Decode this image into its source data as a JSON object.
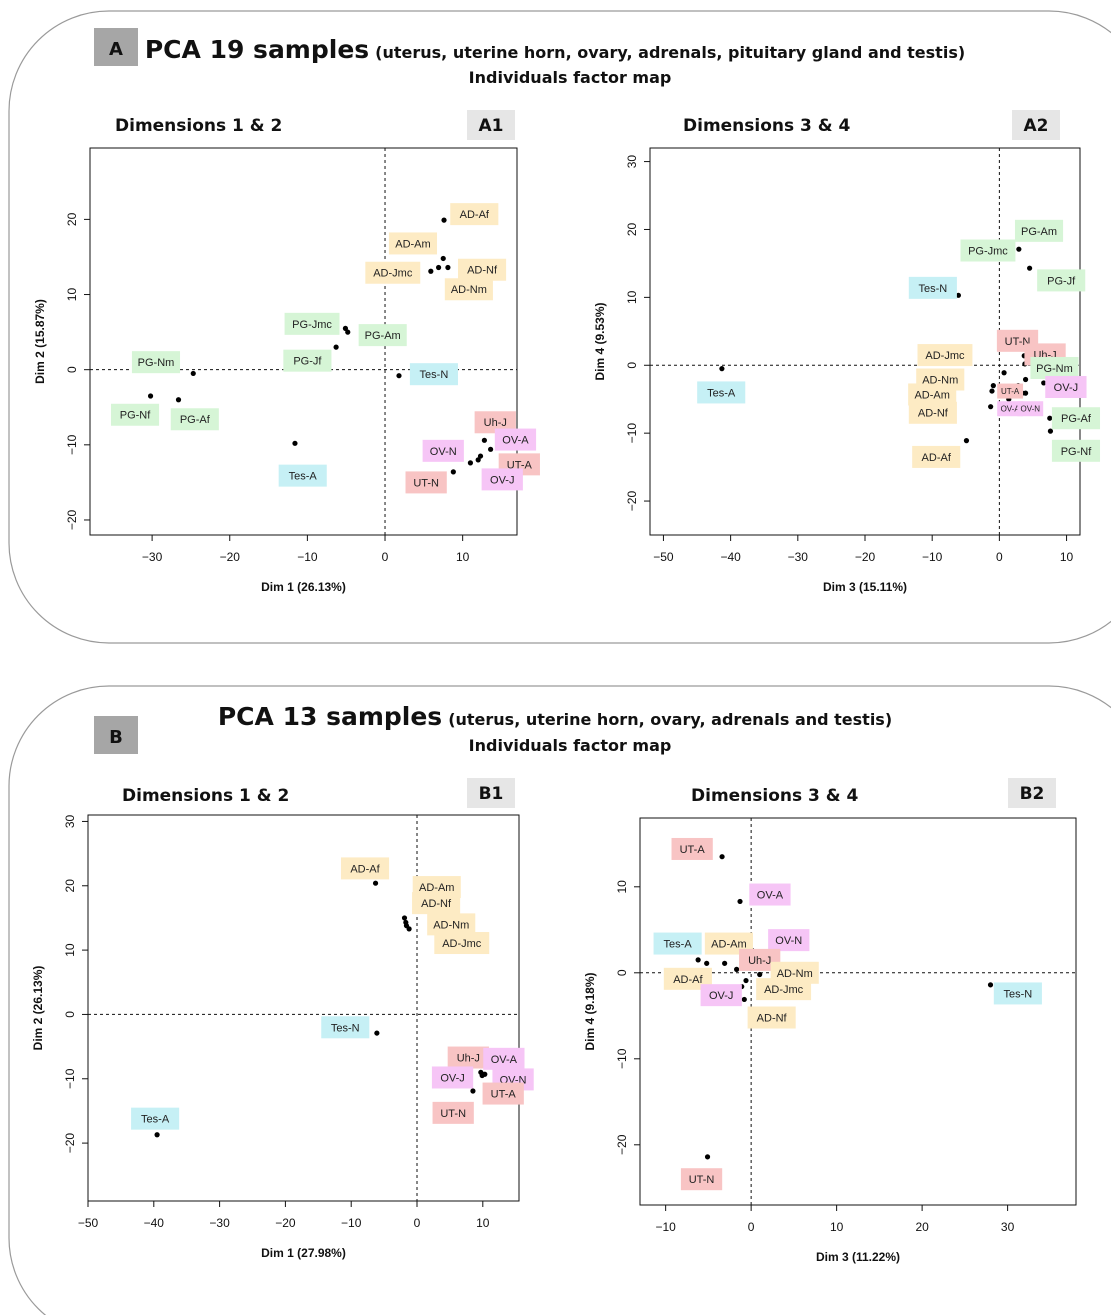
{
  "colors": {
    "AD": "#fdebc4",
    "PG": "#d6f5d6",
    "Tes": "#c6f0f5",
    "UT": "#f8c4c4",
    "OV": "#f6c5f6",
    "grey": "#a6a6a6"
  },
  "panels": [
    {
      "letter": "A",
      "title_main": "PCA 19 samples",
      "title_paren": "(uterus, uterine horn, ovary, adrenals, pituitary gland and testis)",
      "subtitle": "Individuals factor map"
    },
    {
      "letter": "B",
      "title_main": "PCA 13 samples",
      "title_paren": "(uterus, uterine horn, ovary, adrenals and testis)",
      "subtitle": "Individuals factor map"
    }
  ],
  "chart_data": [
    {
      "id": "A1",
      "type": "scatter",
      "title": "Dimensions 1 & 2",
      "tag": "A1",
      "xlabel": "Dim 1 (26.13%)",
      "ylabel": "Dim 2 (15.87%)",
      "xlim": [
        -38,
        17
      ],
      "ylim": [
        -22,
        29.5
      ],
      "xticks": [
        -30,
        -20,
        -10,
        0,
        10
      ],
      "yticks": [
        -20,
        -10,
        0,
        10,
        20
      ],
      "points": [
        {
          "x": -30.2,
          "y": -3.5
        },
        {
          "x": -24.7,
          "y": -0.5
        },
        {
          "x": -26.6,
          "y": -4.0
        },
        {
          "x": -11.6,
          "y": -9.8
        },
        {
          "x": -5.1,
          "y": 5.5
        },
        {
          "x": -4.8,
          "y": 5.0
        },
        {
          "x": -6.3,
          "y": 3.0
        },
        {
          "x": 1.8,
          "y": -0.8
        },
        {
          "x": 7.6,
          "y": 19.9
        },
        {
          "x": 7.5,
          "y": 14.8
        },
        {
          "x": 6.9,
          "y": 13.6
        },
        {
          "x": 8.1,
          "y": 13.6
        },
        {
          "x": 5.9,
          "y": 13.1
        },
        {
          "x": 12.8,
          "y": -9.4
        },
        {
          "x": 13.6,
          "y": -10.6
        },
        {
          "x": 12.3,
          "y": -11.5
        },
        {
          "x": 12.0,
          "y": -12.0
        },
        {
          "x": 11.0,
          "y": -12.4
        },
        {
          "x": 8.8,
          "y": -13.6
        }
      ],
      "labels": [
        {
          "text": "AD-Af",
          "group": "AD",
          "x": 11.5,
          "y": 20.7
        },
        {
          "text": "AD-Am",
          "group": "AD",
          "x": 3.6,
          "y": 16.8
        },
        {
          "text": "AD-Jmc",
          "group": "AD",
          "x": 1.0,
          "y": 12.9
        },
        {
          "text": "AD-Nf",
          "group": "AD",
          "x": 12.5,
          "y": 13.3
        },
        {
          "text": "AD-Nm",
          "group": "AD",
          "x": 10.8,
          "y": 10.7
        },
        {
          "text": "PG-Jmc",
          "group": "PG",
          "x": -9.4,
          "y": 6.1
        },
        {
          "text": "PG-Am",
          "group": "PG",
          "x": -0.3,
          "y": 4.6
        },
        {
          "text": "PG-Jf",
          "group": "PG",
          "x": -10.0,
          "y": 1.2
        },
        {
          "text": "PG-Nm",
          "group": "PG",
          "x": -29.5,
          "y": 1.0
        },
        {
          "text": "PG-Nf",
          "group": "PG",
          "x": -32.2,
          "y": -6.0
        },
        {
          "text": "PG-Af",
          "group": "PG",
          "x": -24.5,
          "y": -6.6
        },
        {
          "text": "Tes-N",
          "group": "Tes",
          "x": 6.3,
          "y": -0.6
        },
        {
          "text": "Tes-A",
          "group": "Tes",
          "x": -10.6,
          "y": -14.1
        },
        {
          "text": "Uh-J",
          "group": "UT",
          "x": 14.2,
          "y": -7.0
        },
        {
          "text": "OV-A",
          "group": "OV",
          "x": 16.8,
          "y": -9.3
        },
        {
          "text": "OV-N",
          "group": "OV",
          "x": 7.5,
          "y": -10.8
        },
        {
          "text": "UT-A",
          "group": "UT",
          "x": 17.3,
          "y": -12.6
        },
        {
          "text": "OV-J",
          "group": "OV",
          "x": 15.1,
          "y": -14.6
        },
        {
          "text": "UT-N",
          "group": "UT",
          "x": 5.3,
          "y": -15.0
        }
      ]
    },
    {
      "id": "A2",
      "type": "scatter",
      "title": "Dimensions 3 & 4",
      "tag": "A2",
      "xlabel": "Dim 3 (15.11%)",
      "ylabel": "Dim 4 (9.53%)",
      "xlim": [
        -52,
        12
      ],
      "ylim": [
        -25,
        32
      ],
      "xticks": [
        -50,
        -40,
        -30,
        -20,
        -10,
        0,
        10
      ],
      "yticks": [
        -20,
        -10,
        0,
        10,
        20,
        30
      ],
      "points": [
        {
          "x": -41.3,
          "y": -0.5
        },
        {
          "x": -6.1,
          "y": 10.3
        },
        {
          "x": 2.9,
          "y": 17.1
        },
        {
          "x": 4.5,
          "y": 14.3
        },
        {
          "x": 3.7,
          "y": 1.4
        },
        {
          "x": 3.8,
          "y": 0.2
        },
        {
          "x": 0.7,
          "y": -1.1
        },
        {
          "x": -0.9,
          "y": -3.0
        },
        {
          "x": -1.1,
          "y": -3.8
        },
        {
          "x": 3.9,
          "y": -2.1
        },
        {
          "x": 6.6,
          "y": -2.6
        },
        {
          "x": 2.8,
          "y": -3.0
        },
        {
          "x": 3.4,
          "y": -4.1
        },
        {
          "x": 3.9,
          "y": -4.1
        },
        {
          "x": -1.3,
          "y": -6.1
        },
        {
          "x": -4.9,
          "y": -11.1
        },
        {
          "x": 7.5,
          "y": -7.8
        },
        {
          "x": 7.6,
          "y": -9.7
        },
        {
          "x": 1.4,
          "y": -5.0
        }
      ],
      "labels": [
        {
          "text": "PG-Am",
          "group": "PG",
          "x": 5.9,
          "y": 19.8
        },
        {
          "text": "PG-Jmc",
          "group": "PG",
          "x": -1.7,
          "y": 16.9
        },
        {
          "text": "PG-Jf",
          "group": "PG",
          "x": 9.2,
          "y": 12.5
        },
        {
          "text": "Tes-N",
          "group": "Tes",
          "x": -9.9,
          "y": 11.4
        },
        {
          "text": "UT-N",
          "group": "UT",
          "x": 2.7,
          "y": 3.6
        },
        {
          "text": "Uh-J",
          "group": "UT",
          "x": 6.8,
          "y": 1.6
        },
        {
          "text": "AD-Jmc",
          "group": "AD",
          "x": -8.1,
          "y": 1.5
        },
        {
          "text": "PG-Nm",
          "group": "PG",
          "x": 8.2,
          "y": -0.4
        },
        {
          "text": "AD-Nm",
          "group": "AD",
          "x": -8.8,
          "y": -2.1
        },
        {
          "text": "OV-J",
          "group": "OV",
          "x": 9.9,
          "y": -3.2
        },
        {
          "text": "AD-Am",
          "group": "AD",
          "x": -10.0,
          "y": -4.3
        },
        {
          "text": "UT-A",
          "group": "UT",
          "x": 1.6,
          "y": -3.8,
          "size": 8
        },
        {
          "text": "AD-Nf",
          "group": "AD",
          "x": -9.9,
          "y": -7.0
        },
        {
          "text": "OV-A",
          "group": "OV",
          "x": 1.6,
          "y": -6.4,
          "size": 8
        },
        {
          "text": "OV-N",
          "group": "OV",
          "x": 4.6,
          "y": -6.4,
          "size": 8
        },
        {
          "text": "PG-Af",
          "group": "PG",
          "x": 11.4,
          "y": -7.8
        },
        {
          "text": "AD-Af",
          "group": "AD",
          "x": -9.4,
          "y": -13.5
        },
        {
          "text": "PG-Nf",
          "group": "PG",
          "x": 11.4,
          "y": -12.6
        },
        {
          "text": "Tes-A",
          "group": "Tes",
          "x": -41.4,
          "y": -4.0
        }
      ]
    },
    {
      "id": "B1",
      "type": "scatter",
      "title": "Dimensions 1 & 2",
      "tag": "B1",
      "xlabel": "Dim 1 (27.98%)",
      "ylabel": "Dim 2 (26.13%)",
      "xlim": [
        -50,
        15.5
      ],
      "ylim": [
        -29,
        31
      ],
      "xticks": [
        -50,
        -40,
        -30,
        -20,
        -10,
        0,
        10
      ],
      "yticks": [
        -20,
        -10,
        0,
        10,
        20,
        30
      ],
      "points": [
        {
          "x": -6.3,
          "y": 20.4
        },
        {
          "x": -1.9,
          "y": 15.0
        },
        {
          "x": -1.7,
          "y": 14.3
        },
        {
          "x": -1.6,
          "y": 13.8
        },
        {
          "x": -1.2,
          "y": 13.3
        },
        {
          "x": -6.1,
          "y": -2.9
        },
        {
          "x": -39.5,
          "y": -18.7
        },
        {
          "x": 9.8,
          "y": -7.5
        },
        {
          "x": 11.0,
          "y": -7.7
        },
        {
          "x": 9.7,
          "y": -9.0
        },
        {
          "x": 9.9,
          "y": -9.5
        },
        {
          "x": 10.3,
          "y": -9.3
        },
        {
          "x": 8.5,
          "y": -11.9
        }
      ],
      "labels": [
        {
          "text": "AD-Af",
          "group": "AD",
          "x": -7.9,
          "y": 22.7
        },
        {
          "text": "AD-Am",
          "group": "AD",
          "x": 3.0,
          "y": 19.8
        },
        {
          "text": "AD-Nf",
          "group": "AD",
          "x": 2.9,
          "y": 17.3
        },
        {
          "text": "AD-Nm",
          "group": "AD",
          "x": 5.2,
          "y": 14.0
        },
        {
          "text": "AD-Jmc",
          "group": "AD",
          "x": 6.8,
          "y": 11.1
        },
        {
          "text": "Tes-N",
          "group": "Tes",
          "x": -10.9,
          "y": -2.0
        },
        {
          "text": "Uh-J",
          "group": "UT",
          "x": 7.8,
          "y": -6.7
        },
        {
          "text": "OV-A",
          "group": "OV",
          "x": 13.2,
          "y": -6.9
        },
        {
          "text": "OV-J",
          "group": "OV",
          "x": 5.4,
          "y": -9.8
        },
        {
          "text": "OV-N",
          "group": "OV",
          "x": 14.6,
          "y": -10.1
        },
        {
          "text": "UT-A",
          "group": "UT",
          "x": 13.1,
          "y": -12.3
        },
        {
          "text": "UT-N",
          "group": "UT",
          "x": 5.5,
          "y": -15.3
        },
        {
          "text": "Tes-A",
          "group": "Tes",
          "x": -39.8,
          "y": -16.2
        }
      ]
    },
    {
      "id": "B2",
      "type": "scatter",
      "title": "Dimensions 3 & 4",
      "tag": "B2",
      "xlabel": "Dim 3 (11.22%)",
      "ylabel": "Dim 4 (9.18%)",
      "xlim": [
        -13,
        38
      ],
      "ylim": [
        -27,
        18
      ],
      "xticks": [
        -10,
        0,
        10,
        20,
        30
      ],
      "yticks": [
        -20,
        -10,
        0,
        10
      ],
      "points": [
        {
          "x": -3.4,
          "y": 13.5
        },
        {
          "x": -1.3,
          "y": 8.3
        },
        {
          "x": -6.2,
          "y": 1.5
        },
        {
          "x": -5.2,
          "y": 1.1
        },
        {
          "x": -3.1,
          "y": 1.1
        },
        {
          "x": -1.7,
          "y": 0.4
        },
        {
          "x": 0.1,
          "y": 2.6
        },
        {
          "x": 1.0,
          "y": -0.2
        },
        {
          "x": -0.6,
          "y": -0.9
        },
        {
          "x": -1.1,
          "y": -1.6
        },
        {
          "x": -0.8,
          "y": -3.1
        },
        {
          "x": 28.0,
          "y": -1.4
        },
        {
          "x": -5.1,
          "y": -21.4
        }
      ],
      "labels": [
        {
          "text": "UT-A",
          "group": "UT",
          "x": -6.9,
          "y": 14.4
        },
        {
          "text": "OV-A",
          "group": "OV",
          "x": 2.2,
          "y": 9.1
        },
        {
          "text": "Tes-A",
          "group": "Tes",
          "x": -8.6,
          "y": 3.4
        },
        {
          "text": "AD-Am",
          "group": "AD",
          "x": -2.6,
          "y": 3.4
        },
        {
          "text": "OV-N",
          "group": "OV",
          "x": 4.4,
          "y": 3.8
        },
        {
          "text": "Uh-J",
          "group": "UT",
          "x": 1.0,
          "y": 1.5
        },
        {
          "text": "AD-Nm",
          "group": "AD",
          "x": 5.1,
          "y": 0.0
        },
        {
          "text": "AD-Af",
          "group": "AD",
          "x": -7.4,
          "y": -0.7
        },
        {
          "text": "AD-Jmc",
          "group": "AD",
          "x": 3.8,
          "y": -1.9
        },
        {
          "text": "OV-J",
          "group": "OV",
          "x": -3.5,
          "y": -2.6
        },
        {
          "text": "AD-Nf",
          "group": "AD",
          "x": 2.4,
          "y": -5.2
        },
        {
          "text": "Tes-N",
          "group": "Tes",
          "x": 31.2,
          "y": -2.4
        },
        {
          "text": "UT-N",
          "group": "UT",
          "x": -5.8,
          "y": -24.0
        }
      ]
    }
  ]
}
